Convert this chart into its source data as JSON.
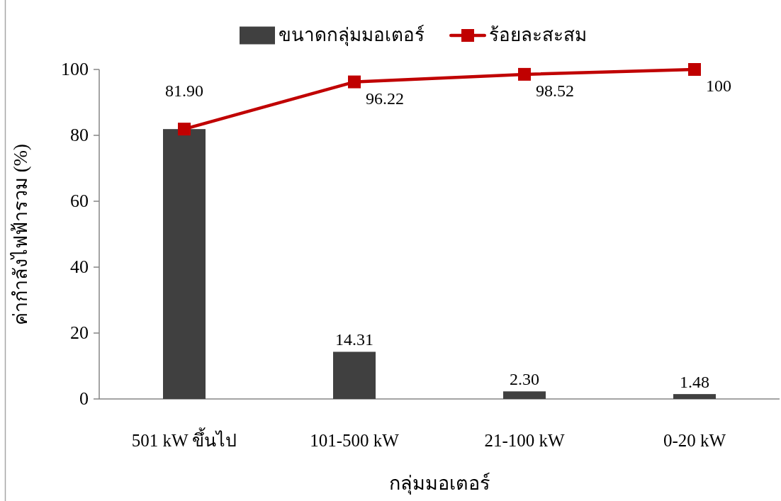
{
  "chart_data": {
    "type": "bar",
    "xlabel": "กลุ่มมอเตอร์",
    "ylabel": "ค่ากำลังไฟฟ้ารวม (%)",
    "categories": [
      "501 kW ขึ้นไป",
      "101-500 kW",
      "21-100 kW",
      "0-20 kW"
    ],
    "series": [
      {
        "name": "ขนาดกลุ่มมอเตอร์",
        "color": "#404040",
        "values": [
          81.9,
          14.31,
          2.3,
          1.48
        ],
        "value_labels": [
          null,
          "14.31",
          "2.30",
          "1.48"
        ]
      },
      {
        "name": "ร้อยละสะสม",
        "type": "line",
        "color": "#c00000",
        "marker": "square",
        "line_style": "solid",
        "values": [
          81.9,
          96.22,
          98.52,
          100
        ],
        "value_labels": [
          "81.90",
          "96.22",
          "98.52",
          "100"
        ]
      }
    ],
    "ylim": [
      0,
      100
    ],
    "yticks": [
      0,
      20,
      40,
      60,
      80,
      100
    ],
    "grid": false,
    "legend": "top"
  }
}
